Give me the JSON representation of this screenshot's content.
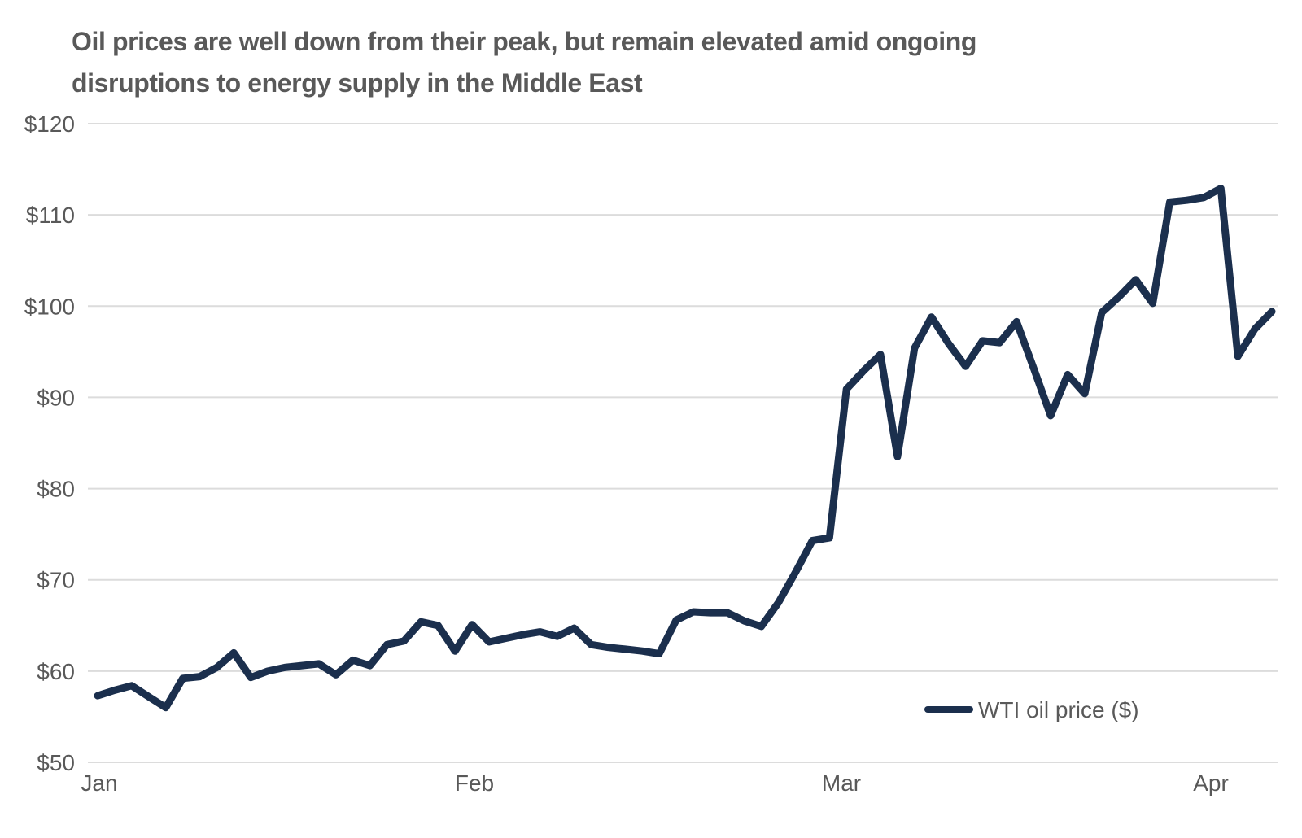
{
  "title": "Oil prices are well down from their peak, but remain elevated amid ongoing disruptions to energy supply in the Middle East",
  "colors": {
    "line": "#1b2f4d",
    "text": "#595959",
    "grid": "#dcdcdc",
    "background": "#ffffff"
  },
  "legend": {
    "label": "WTI oil price ($)"
  },
  "chart_data": {
    "type": "line",
    "title": "Oil prices are well down from their peak, but remain elevated amid ongoing disruptions to energy supply in the Middle East",
    "xlabel": "",
    "ylabel": "",
    "x_tick_labels": [
      "Jan",
      "Feb",
      "Mar",
      "Apr"
    ],
    "y_ticks": [
      50,
      60,
      70,
      80,
      90,
      100,
      110,
      120
    ],
    "y_tick_labels": [
      "$50",
      "$60",
      "$70",
      "$80",
      "$90",
      "$100",
      "$110",
      "$120"
    ],
    "ylim": [
      50,
      120
    ],
    "grid": "horizontal",
    "legend_position": "inside-lower-right",
    "series": [
      {
        "name": "WTI oil price ($)",
        "x_span": "daily values from Jan to early Apr",
        "values": [
          57.3,
          57.9,
          58.4,
          57.2,
          56.0,
          59.2,
          59.4,
          60.4,
          62.0,
          59.3,
          60.0,
          60.4,
          60.6,
          60.8,
          59.6,
          61.2,
          60.6,
          62.9,
          63.3,
          65.4,
          65.0,
          62.2,
          65.1,
          63.2,
          63.6,
          64.0,
          64.3,
          63.8,
          64.7,
          62.9,
          62.6,
          62.4,
          62.2,
          61.9,
          65.6,
          66.5,
          66.4,
          66.4,
          65.5,
          64.9,
          67.5,
          70.8,
          74.3,
          74.6,
          90.9,
          92.9,
          94.7,
          83.5,
          95.4,
          98.8,
          95.9,
          93.4,
          96.2,
          96.0,
          98.3,
          93.2,
          88.0,
          92.5,
          90.4,
          99.3,
          101.0,
          102.9,
          100.3,
          111.4,
          111.6,
          111.9,
          112.9,
          94.5,
          97.5,
          99.4
        ]
      }
    ]
  }
}
